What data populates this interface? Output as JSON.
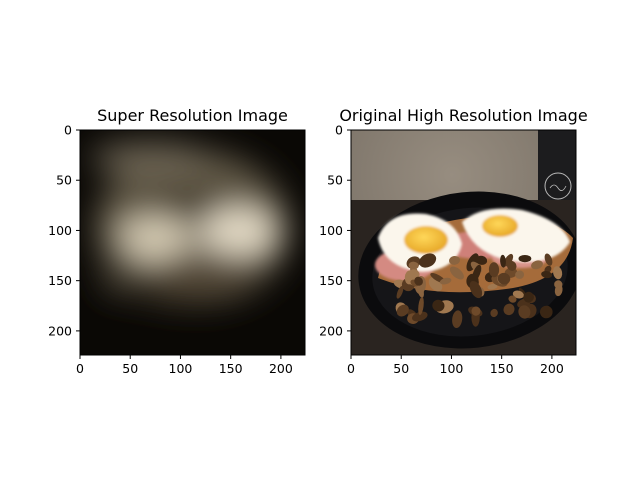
{
  "chart_data": [
    {
      "type": "image",
      "title": "Super Resolution Image",
      "xlim": [
        0,
        224
      ],
      "ylim": [
        224,
        0
      ],
      "xticks": [
        0,
        50,
        100,
        150,
        200
      ],
      "yticks": [
        0,
        50,
        100,
        150,
        200
      ],
      "content": "blurry reconstruction of a plate of eggs, ham and mushrooms"
    },
    {
      "type": "image",
      "title": "Original High Resolution Image",
      "xlim": [
        0,
        224
      ],
      "ylim": [
        224,
        0
      ],
      "xticks": [
        0,
        50,
        100,
        150,
        200
      ],
      "yticks": [
        0,
        50,
        100,
        150,
        200
      ],
      "content": "photo of fried eggs on toast with ham and sauteed mushrooms on a black plate, dark mug in background"
    }
  ],
  "colors": {
    "sr_background": "#0a0805",
    "sr_light": "#e6ddc8",
    "wall": "#8e8478",
    "plate": "#0b0b0d",
    "egg_white": "#fbf6ec",
    "yolk": "#f3bf3a",
    "ham": "#d48a82",
    "mushroom": "#5a3c22"
  }
}
